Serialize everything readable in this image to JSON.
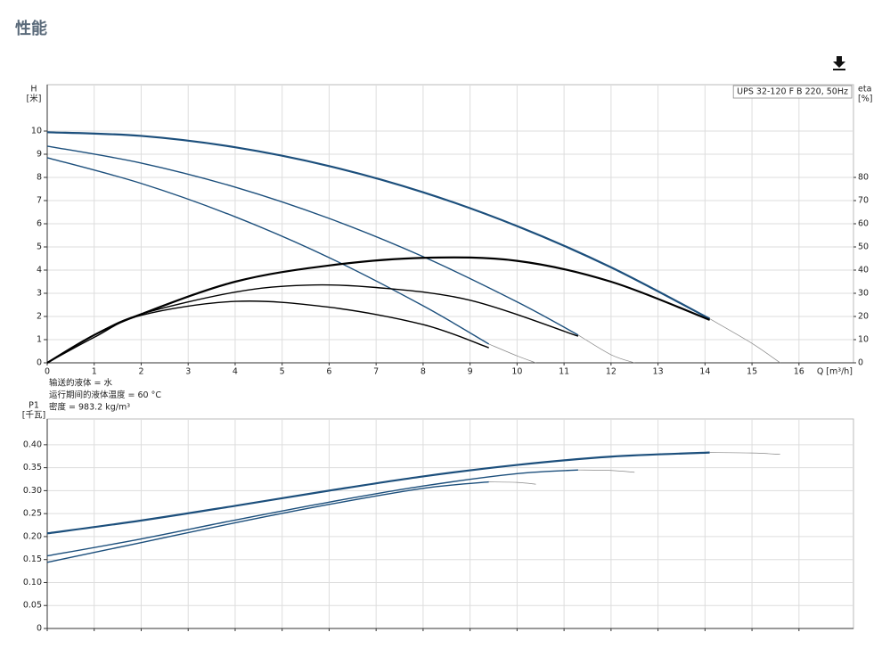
{
  "page": {
    "title": "性能"
  },
  "chart_data": [
    {
      "type": "line",
      "ylabel": [
        "H",
        "[米]"
      ],
      "y2label": [
        "eta",
        "[%]"
      ],
      "xlabel": "Q [m³/h]",
      "annotation": "UPS 32-120 F B 220, 50Hz",
      "notes": [
        "输送的液体 = 水",
        "运行期间的液体温度 = 60 °C",
        "密度 = 983.2 kg/m³"
      ],
      "xlim": [
        0,
        17.16
      ],
      "xticks": [
        0,
        1,
        2,
        3,
        4,
        5,
        6,
        7,
        8,
        9,
        10,
        11,
        12,
        13,
        14,
        15,
        16
      ],
      "show_xtick_labels": true,
      "ylim": [
        0,
        12
      ],
      "yticks": [
        0,
        1,
        2,
        3,
        4,
        5,
        6,
        7,
        8,
        9,
        10
      ],
      "y2lim": [
        0,
        120
      ],
      "y2ticks": [
        0,
        10,
        20,
        30,
        40,
        50,
        60,
        70,
        80
      ],
      "grid": true,
      "series": [
        {
          "color": "#1c4f7c",
          "width": 2.2,
          "x": [
            0,
            2,
            4,
            6,
            8,
            10,
            12,
            14.1
          ],
          "values": [
            9.95,
            9.79,
            9.3,
            8.49,
            7.36,
            5.9,
            4.12,
            1.9
          ]
        },
        {
          "color": "#888888",
          "width": 0.7,
          "x": [
            14.1,
            15,
            15.6
          ],
          "values": [
            1.9,
            0.84,
            0
          ]
        },
        {
          "color": "#1c4f7c",
          "width": 1.4,
          "x": [
            0,
            2,
            4,
            6,
            8,
            10,
            11.3
          ],
          "values": [
            9.35,
            8.62,
            7.58,
            6.23,
            4.58,
            2.63,
            1.2
          ]
        },
        {
          "color": "#888888",
          "width": 0.7,
          "x": [
            11.3,
            12,
            12.5
          ],
          "values": [
            1.2,
            0.35,
            0
          ]
        },
        {
          "color": "#1c4f7c",
          "width": 1.4,
          "x": [
            0,
            2,
            4,
            6,
            8,
            9.4
          ],
          "values": [
            8.85,
            7.74,
            6.3,
            4.54,
            2.46,
            0.81
          ]
        },
        {
          "color": "#888888",
          "width": 0.7,
          "x": [
            9.4,
            10,
            10.4
          ],
          "values": [
            0.81,
            0.3,
            0
          ]
        },
        {
          "color": "#000000",
          "width": 2.2,
          "axis": "y2",
          "x": [
            0,
            1,
            2,
            4,
            6,
            8,
            10,
            12,
            14.1
          ],
          "values": [
            0,
            12,
            21,
            35,
            42,
            45.3,
            44,
            35,
            18.5
          ]
        },
        {
          "color": "#000000",
          "width": 1.4,
          "axis": "y2",
          "x": [
            0,
            1,
            2,
            4,
            5.5,
            7,
            9,
            11.3
          ],
          "values": [
            0,
            12,
            21,
            30.5,
            33.5,
            32.5,
            27,
            11.5
          ]
        },
        {
          "color": "#000000",
          "width": 1.4,
          "axis": "y2",
          "x": [
            0,
            1,
            2,
            4,
            6,
            8,
            9.4
          ],
          "values": [
            0,
            11,
            20.5,
            26.5,
            24,
            16.5,
            6.5
          ]
        }
      ]
    },
    {
      "type": "line",
      "ylabel": [
        "P1",
        "[千瓦]"
      ],
      "xlim": [
        0,
        17.16
      ],
      "xticks": [
        0,
        1,
        2,
        3,
        4,
        5,
        6,
        7,
        8,
        9,
        10,
        11,
        12,
        13,
        14,
        15,
        16
      ],
      "show_xtick_labels": false,
      "ylim": [
        0,
        0.456
      ],
      "yticks": [
        0,
        0.05,
        {
          "value": 0.1,
          "label": "0.10"
        },
        0.15,
        {
          "value": 0.2,
          "label": "0.20"
        },
        0.25,
        {
          "value": 0.3,
          "label": "0.30"
        },
        0.35,
        {
          "value": 0.4,
          "label": "0.40"
        }
      ],
      "grid": true,
      "series": [
        {
          "color": "#1c4f7c",
          "width": 2.2,
          "x": [
            0,
            2,
            4,
            6,
            8,
            10,
            12,
            14.1
          ],
          "values": [
            0.207,
            0.235,
            0.267,
            0.3,
            0.331,
            0.356,
            0.374,
            0.383
          ]
        },
        {
          "color": "#888888",
          "width": 0.7,
          "x": [
            14.1,
            15,
            15.6
          ],
          "values": [
            0.383,
            0.382,
            0.379
          ]
        },
        {
          "color": "#1c4f7c",
          "width": 1.4,
          "x": [
            0,
            2,
            4,
            6,
            8,
            10,
            11.3
          ],
          "values": [
            0.158,
            0.195,
            0.236,
            0.275,
            0.31,
            0.337,
            0.345
          ]
        },
        {
          "color": "#888888",
          "width": 0.7,
          "x": [
            11.3,
            12,
            12.5
          ],
          "values": [
            0.345,
            0.344,
            0.34
          ]
        },
        {
          "color": "#1c4f7c",
          "width": 1.4,
          "x": [
            0,
            2,
            4,
            6,
            8,
            9.4
          ],
          "values": [
            0.144,
            0.187,
            0.23,
            0.27,
            0.305,
            0.319
          ]
        },
        {
          "color": "#888888",
          "width": 0.7,
          "x": [
            9.4,
            10,
            10.4
          ],
          "values": [
            0.319,
            0.318,
            0.314
          ]
        }
      ]
    }
  ]
}
